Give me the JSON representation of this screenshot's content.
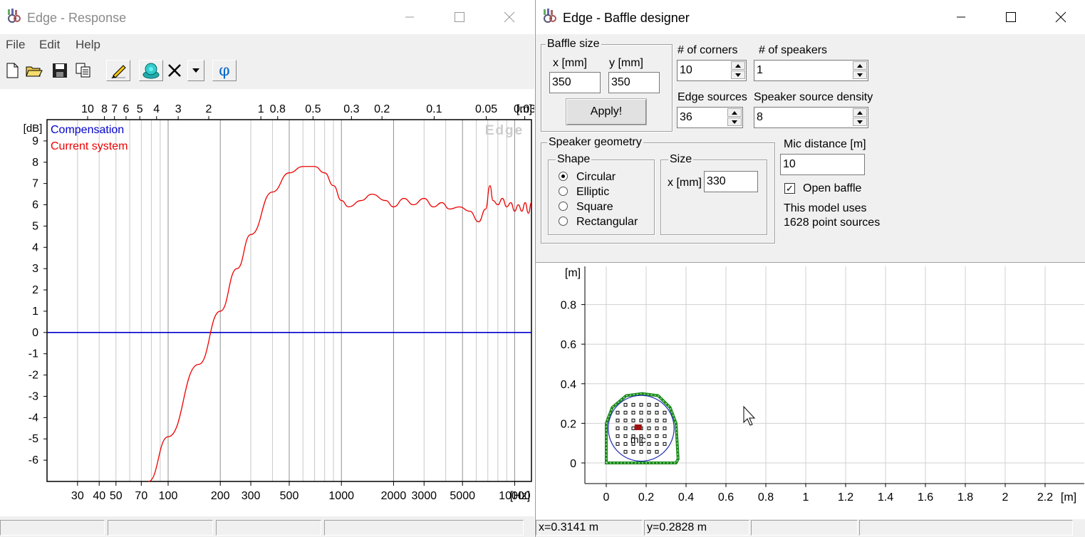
{
  "response_window": {
    "title": "Edge - Response",
    "menu": [
      "File",
      "Edit",
      "Help"
    ],
    "toolbar_icons": [
      "new-file-icon",
      "open-folder-icon",
      "save-icon",
      "copy-icon",
      "pencil-icon",
      "speaker-icon",
      "delete-icon",
      "dropdown-arrow-icon",
      "phi-icon"
    ],
    "phi_label": "φ",
    "watermark": "Edge",
    "status_panels": [
      "",
      "",
      "",
      ""
    ]
  },
  "designer_window": {
    "title": "Edge - Baffle designer",
    "baffle_size": {
      "legend": "Baffle size",
      "x_label": "x [mm]",
      "y_label": "y [mm]",
      "x_value": "350",
      "y_value": "350",
      "apply_label": "Apply!"
    },
    "corners": {
      "label": "# of corners",
      "value": "10"
    },
    "speakers": {
      "label": "# of speakers",
      "value": "1"
    },
    "edge_sources": {
      "label": "Edge sources",
      "value": "36"
    },
    "speaker_density": {
      "label": "Speaker source density",
      "value": "8"
    },
    "geometry": {
      "legend": "Speaker geometry",
      "shape_legend": "Shape",
      "shapes": [
        {
          "label": "Circular",
          "selected": true
        },
        {
          "label": "Elliptic",
          "selected": false
        },
        {
          "label": "Square",
          "selected": false
        },
        {
          "label": "Rectangular",
          "selected": false
        }
      ],
      "size_legend": "Size",
      "size_x_label": "x [mm]",
      "size_x_value": "330"
    },
    "mic_distance": {
      "label": "Mic distance [m]",
      "value": "10"
    },
    "open_baffle": {
      "label": "Open baffle",
      "checked": true,
      "mark": "✓"
    },
    "model_info": [
      "This model uses",
      "1628 point sources"
    ],
    "status": {
      "x": "x=0.3141 m",
      "y": "y=0.2828 m"
    },
    "mic_label": "mic"
  },
  "chart_data": [
    {
      "type": "line",
      "title": "",
      "xlabel": "[Hz]",
      "ylabel": "[dB]",
      "x_scale": "log",
      "xlim": [
        20,
        12500
      ],
      "ylim": [
        -7,
        10
      ],
      "x_ticks": [
        30,
        40,
        50,
        70,
        100,
        200,
        300,
        500,
        1000,
        2000,
        3000,
        5000,
        10000
      ],
      "x_tick_labels": [
        "30",
        "40",
        "50",
        "70",
        "100",
        "200",
        "300",
        "500",
        "1000",
        "2000",
        "3000",
        "5000",
        "10000"
      ],
      "y_ticks": [
        9,
        8,
        7,
        6,
        5,
        4,
        3,
        2,
        1,
        0,
        -1,
        -2,
        -3,
        -4,
        -5,
        -6
      ],
      "top_axis_label": "[m]",
      "top_ticks": [
        {
          "label": "10",
          "m": 10
        },
        {
          "label": "8",
          "m": 8
        },
        {
          "label": "7",
          "m": 7
        },
        {
          "label": "6",
          "m": 6
        },
        {
          "label": "5",
          "m": 5
        },
        {
          "label": "4",
          "m": 4
        },
        {
          "label": "3",
          "m": 3
        },
        {
          "label": "2",
          "m": 2
        },
        {
          "label": "1",
          "m": 1
        },
        {
          "label": "0.8",
          "m": 0.8
        },
        {
          "label": "0.5",
          "m": 0.5
        },
        {
          "label": "0.3",
          "m": 0.3
        },
        {
          "label": "0.2",
          "m": 0.2
        },
        {
          "label": "0.1",
          "m": 0.1
        },
        {
          "label": "0.05",
          "m": 0.05
        },
        {
          "label": "0.03",
          "m": 0.03
        }
      ],
      "grid": true,
      "legend_position": "top-left",
      "series": [
        {
          "name": "Compensation",
          "color": "#0000cc",
          "x": [
            20,
            12500
          ],
          "y": [
            0,
            0
          ]
        },
        {
          "name": "Current system",
          "color": "#ee0000",
          "x": [
            77,
            100,
            150,
            200,
            250,
            300,
            400,
            500,
            600,
            700,
            800,
            900,
            1000,
            1100,
            1300,
            1500,
            1800,
            2000,
            2300,
            2600,
            3000,
            3400,
            3800,
            4200,
            4800,
            5500,
            6200,
            6800,
            7200,
            7500,
            8000,
            8500,
            9000,
            9500,
            10000,
            10500,
            11000,
            11500,
            12000,
            12500
          ],
          "y": [
            -7,
            -4.9,
            -1.5,
            1.0,
            3.0,
            4.6,
            6.6,
            7.5,
            7.8,
            7.8,
            7.5,
            6.9,
            6.2,
            5.9,
            6.2,
            6.5,
            6.2,
            5.9,
            6.3,
            6.0,
            6.3,
            5.9,
            6.1,
            5.8,
            5.9,
            5.7,
            5.2,
            5.8,
            6.9,
            6.2,
            6.0,
            6.3,
            5.9,
            6.1,
            5.7,
            6.0,
            5.7,
            6.1,
            5.6,
            6.1
          ]
        }
      ]
    },
    {
      "type": "scatter",
      "title": "",
      "xlabel": "[m]",
      "ylabel": "[m]",
      "xlim": [
        -0.1,
        2.4
      ],
      "ylim": [
        -0.1,
        0.95
      ],
      "x_ticks": [
        0,
        0.2,
        0.4,
        0.6,
        0.8,
        1,
        1.2,
        1.4,
        1.6,
        1.8,
        2,
        2.2
      ],
      "y_ticks": [
        0,
        0.2,
        0.4,
        0.6,
        0.8
      ],
      "grid": true,
      "baffle_corners_m": [
        [
          0,
          0
        ],
        [
          0,
          0.2
        ],
        [
          0.03,
          0.28
        ],
        [
          0.1,
          0.34
        ],
        [
          0.18,
          0.35
        ],
        [
          0.26,
          0.34
        ],
        [
          0.32,
          0.28
        ],
        [
          0.35,
          0.2
        ],
        [
          0.36,
          0.02
        ],
        [
          0.35,
          0
        ]
      ],
      "speaker_center_m": [
        0.175,
        0.175
      ],
      "speaker_radius_m": 0.165,
      "mic_m": [
        0.16,
        0.18
      ]
    }
  ]
}
